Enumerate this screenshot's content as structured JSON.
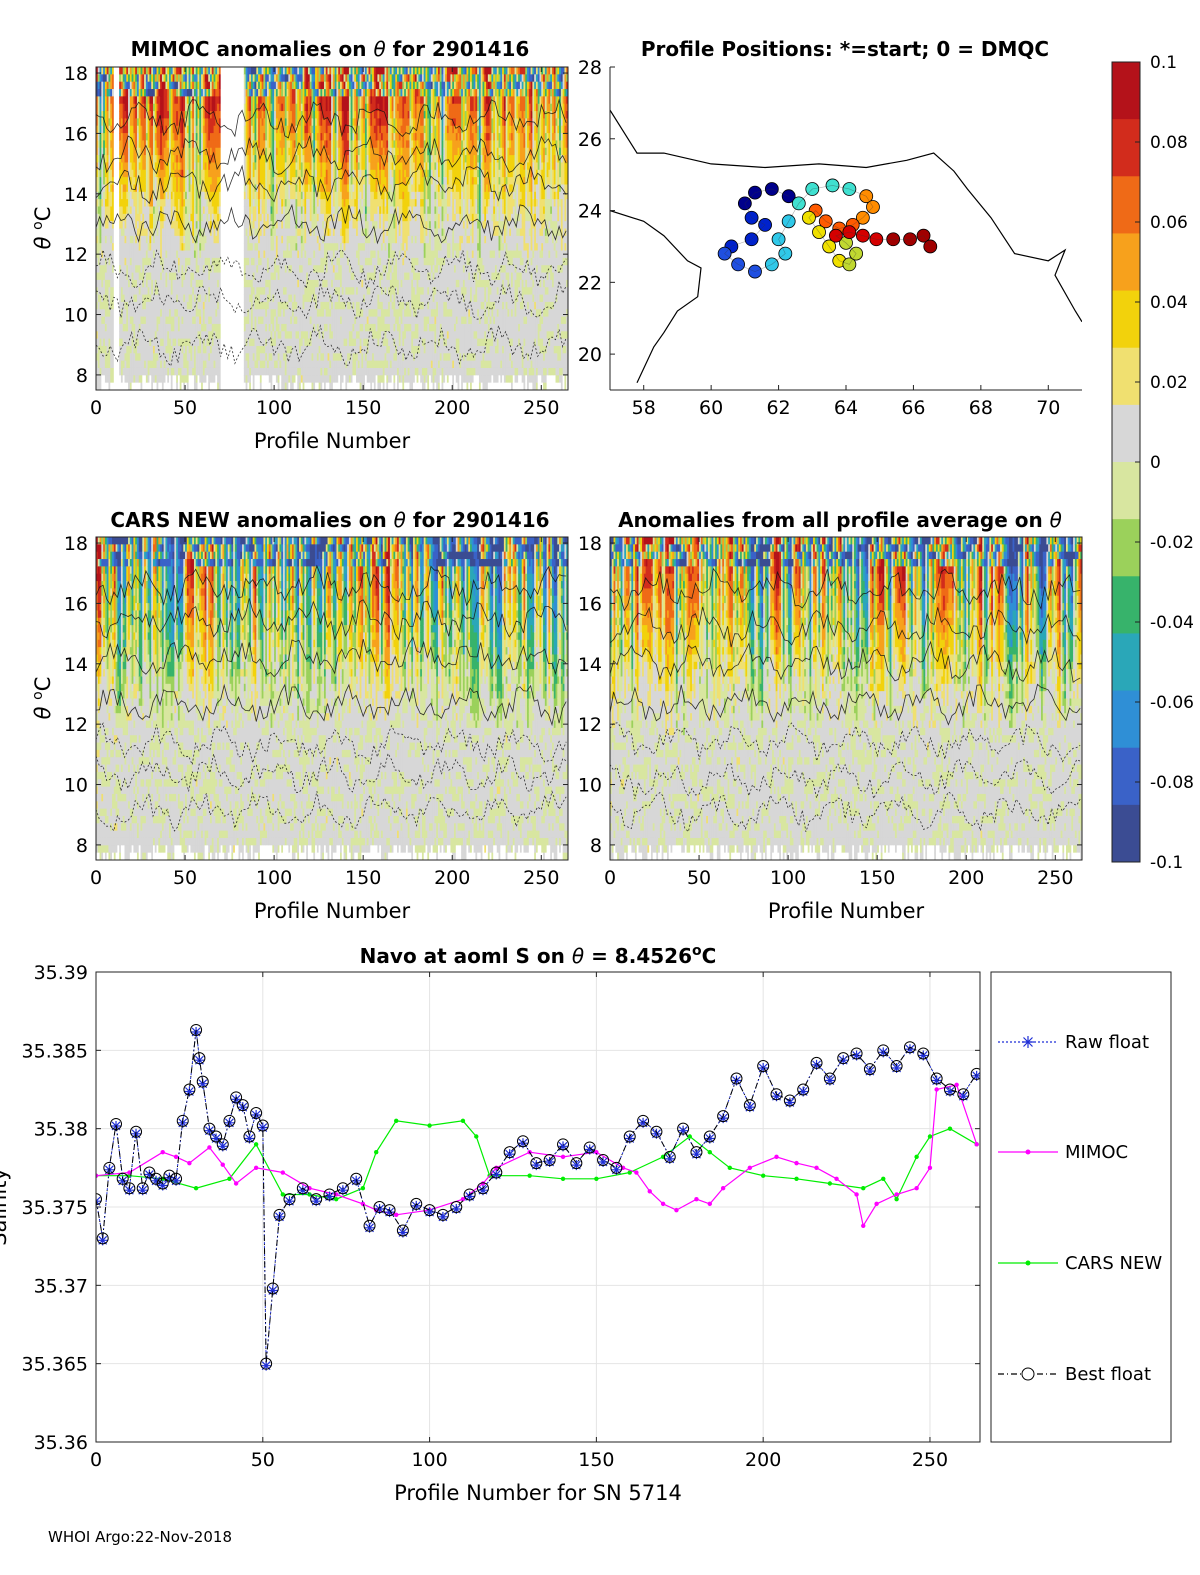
{
  "colors": {
    "raw": "#1f2fd6",
    "mimoc": "#ff00ff",
    "cars": "#00ee00",
    "best": "#000000",
    "cmap": [
      "#3b4c93",
      "#3a62c8",
      "#2f8fd6",
      "#2aa7b8",
      "#37b36b",
      "#9bd15b",
      "#d8e6a0",
      "#d7d7d7",
      "#f0e070",
      "#f2d20c",
      "#f7a11c",
      "#ef6a17",
      "#d22c1c",
      "#b4121a"
    ]
  },
  "footer": "WHOI Argo:22-Nov-2018",
  "chart_data": [
    {
      "id": "mimoc",
      "type": "heatmap",
      "title_prefix": "MIMOC anomalies on ",
      "title_suffix": "  for 2901416",
      "theta": "θ",
      "xlabel": "Profile Number",
      "ylabel_theta": "θ",
      "ylabel_sup": "o",
      "ylabel_c": "C",
      "xlim": [
        0,
        265
      ],
      "ylim": [
        7.5,
        18.2
      ],
      "xticks": [
        "0",
        "50",
        "100",
        "150",
        "200",
        "250"
      ],
      "yticks": [
        "8",
        "10",
        "12",
        "14",
        "16",
        "18"
      ],
      "seed": 11,
      "warm": 0.75,
      "gaps": [
        [
          10,
          12
        ],
        [
          70,
          82
        ]
      ]
    },
    {
      "id": "positions",
      "type": "scatter",
      "title": "Profile Positions: *=start; 0 = DMQC",
      "xlim": [
        57,
        71
      ],
      "ylim": [
        19,
        28
      ],
      "xticks": [
        "58",
        "60",
        "62",
        "64",
        "66",
        "68",
        "70"
      ],
      "yticks": [
        "20",
        "22",
        "24",
        "26",
        "28"
      ],
      "coast": [
        [
          57,
          26.8
        ],
        [
          57.8,
          25.6
        ],
        [
          58.6,
          25.6
        ],
        [
          60,
          25.3
        ],
        [
          61.6,
          25.2
        ],
        [
          63.2,
          25.3
        ],
        [
          64.6,
          25.2
        ],
        [
          65.8,
          25.4
        ],
        [
          66.6,
          25.6
        ],
        [
          67.2,
          25.1
        ],
        [
          67.6,
          24.6
        ],
        [
          68.3,
          23.8
        ],
        [
          69,
          22.8
        ],
        [
          70,
          22.6
        ],
        [
          70.5,
          22.9
        ],
        [
          70.2,
          22.2
        ],
        [
          70.8,
          21.2
        ],
        [
          71,
          20.9
        ]
      ],
      "coast2": [
        [
          57,
          24
        ],
        [
          58,
          23.7
        ],
        [
          58.6,
          23.3
        ],
        [
          59.3,
          22.6
        ],
        [
          59.7,
          22.4
        ],
        [
          59.6,
          21.6
        ],
        [
          59.0,
          21.2
        ],
        [
          58.6,
          20.6
        ],
        [
          58.3,
          20.2
        ],
        [
          57.8,
          19.2
        ]
      ],
      "track": [
        [
          62.3,
          24.4
        ],
        [
          61.8,
          24.6
        ],
        [
          61.3,
          24.5
        ],
        [
          61.0,
          24.2
        ],
        [
          61.2,
          23.8
        ],
        [
          61.6,
          23.6
        ],
        [
          61.2,
          23.2
        ],
        [
          60.6,
          23.0
        ],
        [
          60.4,
          22.8
        ],
        [
          60.8,
          22.5
        ],
        [
          61.3,
          22.3
        ],
        [
          61.8,
          22.5
        ],
        [
          62.2,
          22.8
        ],
        [
          62.0,
          23.2
        ],
        [
          62.3,
          23.7
        ],
        [
          62.6,
          24.2
        ],
        [
          63.0,
          24.6
        ],
        [
          63.6,
          24.7
        ],
        [
          64.1,
          24.6
        ],
        [
          64.6,
          24.4
        ],
        [
          64.8,
          24.1
        ],
        [
          64.5,
          23.8
        ],
        [
          64.2,
          23.6
        ],
        [
          63.8,
          23.5
        ],
        [
          63.4,
          23.7
        ],
        [
          63.1,
          24.0
        ],
        [
          62.9,
          23.8
        ],
        [
          63.2,
          23.4
        ],
        [
          63.5,
          23.0
        ],
        [
          63.8,
          22.6
        ],
        [
          64.1,
          22.5
        ],
        [
          64.3,
          22.8
        ],
        [
          64.0,
          23.1
        ],
        [
          63.7,
          23.3
        ],
        [
          64.1,
          23.4
        ],
        [
          64.5,
          23.3
        ],
        [
          64.9,
          23.2
        ],
        [
          65.4,
          23.2
        ],
        [
          65.9,
          23.2
        ],
        [
          66.3,
          23.3
        ],
        [
          66.5,
          23.0
        ]
      ]
    },
    {
      "id": "cars",
      "type": "heatmap",
      "title_prefix": "CARS NEW anomalies on ",
      "title_suffix": " for 2901416",
      "theta": "θ",
      "xlabel": "Profile Number",
      "ylabel_theta": "θ",
      "ylabel_sup": "o",
      "ylabel_c": "C",
      "xlim": [
        0,
        265
      ],
      "ylim": [
        7.5,
        18.2
      ],
      "xticks": [
        "0",
        "50",
        "100",
        "150",
        "200",
        "250"
      ],
      "yticks": [
        "8",
        "10",
        "12",
        "14",
        "16",
        "18"
      ],
      "seed": 23,
      "warm": 0.5,
      "gaps": []
    },
    {
      "id": "allavg",
      "type": "heatmap",
      "title_prefix": "Anomalies from all profile average on ",
      "title_suffix": "",
      "theta": "θ",
      "xlabel": "Profile Number",
      "xlim": [
        0,
        265
      ],
      "ylim": [
        7.5,
        18.2
      ],
      "xticks": [
        "0",
        "50",
        "100",
        "150",
        "200",
        "250"
      ],
      "yticks": [
        "8",
        "10",
        "12",
        "14",
        "16",
        "18"
      ],
      "seed": 37,
      "warm": 0.55,
      "gaps": []
    },
    {
      "id": "colorbar",
      "type": "colorbar",
      "range": [
        -0.1,
        0.1
      ],
      "ticks": [
        "0.1",
        "0.08",
        "0.06",
        "0.04",
        "0.02",
        "0",
        "-0.02",
        "-0.04",
        "-0.06",
        "-0.08",
        "-0.1"
      ]
    },
    {
      "id": "salinity",
      "type": "line",
      "title_prefix": "Navo at aoml S on ",
      "theta": "θ",
      "title_eq": " = 8.4526",
      "title_sup": "o",
      "title_c": "C",
      "xlabel": "Profile Number for SN 5714",
      "ylabel": "Salinity",
      "xlim": [
        0,
        265
      ],
      "ylim": [
        35.36,
        35.39
      ],
      "xticks": [
        "0",
        "50",
        "100",
        "150",
        "200",
        "250"
      ],
      "yticks": [
        "35.39",
        "35.385",
        "35.38",
        "35.375",
        "35.37",
        "35.365",
        "35.36"
      ],
      "legend": [
        "Raw float",
        "MIMOC",
        "CARS NEW",
        "Best float"
      ],
      "series": {
        "best": [
          [
            0,
            35.3755
          ],
          [
            2,
            35.373
          ],
          [
            4,
            35.3775
          ],
          [
            6,
            35.3803
          ],
          [
            8,
            35.3768
          ],
          [
            10,
            35.3762
          ],
          [
            12,
            35.3798
          ],
          [
            14,
            35.3762
          ],
          [
            16,
            35.3772
          ],
          [
            18,
            35.3768
          ],
          [
            20,
            35.3765
          ],
          [
            22,
            35.377
          ],
          [
            24,
            35.3768
          ],
          [
            26,
            35.3805
          ],
          [
            28,
            35.3825
          ],
          [
            30,
            35.3863
          ],
          [
            31,
            35.3845
          ],
          [
            32,
            35.383
          ],
          [
            34,
            35.38
          ],
          [
            36,
            35.3795
          ],
          [
            38,
            35.379
          ],
          [
            40,
            35.3805
          ],
          [
            42,
            35.382
          ],
          [
            44,
            35.3815
          ],
          [
            46,
            35.3795
          ],
          [
            48,
            35.381
          ],
          [
            50,
            35.3802
          ],
          [
            51,
            35.365
          ],
          [
            53,
            35.3698
          ],
          [
            55,
            35.3745
          ],
          [
            58,
            35.3755
          ],
          [
            62,
            35.3762
          ],
          [
            66,
            35.3755
          ],
          [
            70,
            35.3758
          ],
          [
            74,
            35.3762
          ],
          [
            78,
            35.3768
          ],
          [
            82,
            35.3738
          ],
          [
            85,
            35.375
          ],
          [
            88,
            35.3748
          ],
          [
            92,
            35.3735
          ],
          [
            96,
            35.3752
          ],
          [
            100,
            35.3748
          ],
          [
            104,
            35.3745
          ],
          [
            108,
            35.375
          ],
          [
            112,
            35.3758
          ],
          [
            116,
            35.3762
          ],
          [
            120,
            35.3772
          ],
          [
            124,
            35.3785
          ],
          [
            128,
            35.3792
          ],
          [
            132,
            35.3778
          ],
          [
            136,
            35.378
          ],
          [
            140,
            35.379
          ],
          [
            144,
            35.3778
          ],
          [
            148,
            35.3788
          ],
          [
            152,
            35.378
          ],
          [
            156,
            35.3775
          ],
          [
            160,
            35.3795
          ],
          [
            164,
            35.3805
          ],
          [
            168,
            35.3798
          ],
          [
            172,
            35.3782
          ],
          [
            176,
            35.38
          ],
          [
            180,
            35.3785
          ],
          [
            184,
            35.3795
          ],
          [
            188,
            35.3808
          ],
          [
            192,
            35.3832
          ],
          [
            196,
            35.3815
          ],
          [
            200,
            35.384
          ],
          [
            204,
            35.3822
          ],
          [
            208,
            35.3818
          ],
          [
            212,
            35.3825
          ],
          [
            216,
            35.3842
          ],
          [
            220,
            35.3832
          ],
          [
            224,
            35.3845
          ],
          [
            228,
            35.3848
          ],
          [
            232,
            35.3838
          ],
          [
            236,
            35.385
          ],
          [
            240,
            35.384
          ],
          [
            244,
            35.3852
          ],
          [
            248,
            35.3848
          ],
          [
            252,
            35.3832
          ],
          [
            256,
            35.3825
          ],
          [
            260,
            35.3822
          ],
          [
            264,
            35.3835
          ]
        ],
        "mimoc": [
          [
            0,
            35.377
          ],
          [
            10,
            35.3772
          ],
          [
            20,
            35.3785
          ],
          [
            24,
            35.3782
          ],
          [
            28,
            35.3778
          ],
          [
            34,
            35.3788
          ],
          [
            38,
            35.3777
          ],
          [
            42,
            35.3765
          ],
          [
            48,
            35.3775
          ],
          [
            56,
            35.3772
          ],
          [
            64,
            35.3762
          ],
          [
            72,
            35.3758
          ],
          [
            80,
            35.3752
          ],
          [
            84,
            35.3748
          ],
          [
            90,
            35.3745
          ],
          [
            100,
            35.3748
          ],
          [
            110,
            35.3755
          ],
          [
            116,
            35.3765
          ],
          [
            120,
            35.3775
          ],
          [
            130,
            35.3785
          ],
          [
            140,
            35.3782
          ],
          [
            150,
            35.3785
          ],
          [
            158,
            35.3775
          ],
          [
            162,
            35.3772
          ],
          [
            166,
            35.376
          ],
          [
            170,
            35.3752
          ],
          [
            174,
            35.3748
          ],
          [
            180,
            35.3755
          ],
          [
            184,
            35.3752
          ],
          [
            188,
            35.3762
          ],
          [
            196,
            35.3775
          ],
          [
            204,
            35.3782
          ],
          [
            210,
            35.3778
          ],
          [
            216,
            35.3775
          ],
          [
            222,
            35.3768
          ],
          [
            228,
            35.3758
          ],
          [
            230,
            35.3738
          ],
          [
            234,
            35.3752
          ],
          [
            240,
            35.3758
          ],
          [
            246,
            35.3762
          ],
          [
            250,
            35.3775
          ],
          [
            252,
            35.3825
          ],
          [
            258,
            35.3828
          ],
          [
            264,
            35.379
          ]
        ],
        "cars": [
          [
            0,
            35.377
          ],
          [
            10,
            35.377
          ],
          [
            20,
            35.3768
          ],
          [
            30,
            35.3762
          ],
          [
            40,
            35.3768
          ],
          [
            48,
            35.379
          ],
          [
            56,
            35.3758
          ],
          [
            64,
            35.3758
          ],
          [
            72,
            35.3755
          ],
          [
            80,
            35.3762
          ],
          [
            84,
            35.3785
          ],
          [
            90,
            35.3805
          ],
          [
            100,
            35.3802
          ],
          [
            110,
            35.3805
          ],
          [
            114,
            35.3795
          ],
          [
            118,
            35.377
          ],
          [
            130,
            35.377
          ],
          [
            140,
            35.3768
          ],
          [
            150,
            35.3768
          ],
          [
            160,
            35.3772
          ],
          [
            170,
            35.3782
          ],
          [
            178,
            35.3795
          ],
          [
            184,
            35.3785
          ],
          [
            190,
            35.3775
          ],
          [
            200,
            35.377
          ],
          [
            210,
            35.3768
          ],
          [
            220,
            35.3765
          ],
          [
            230,
            35.3762
          ],
          [
            236,
            35.3768
          ],
          [
            240,
            35.3755
          ],
          [
            246,
            35.3782
          ],
          [
            250,
            35.3795
          ],
          [
            256,
            35.38
          ],
          [
            264,
            35.379
          ]
        ]
      }
    }
  ]
}
